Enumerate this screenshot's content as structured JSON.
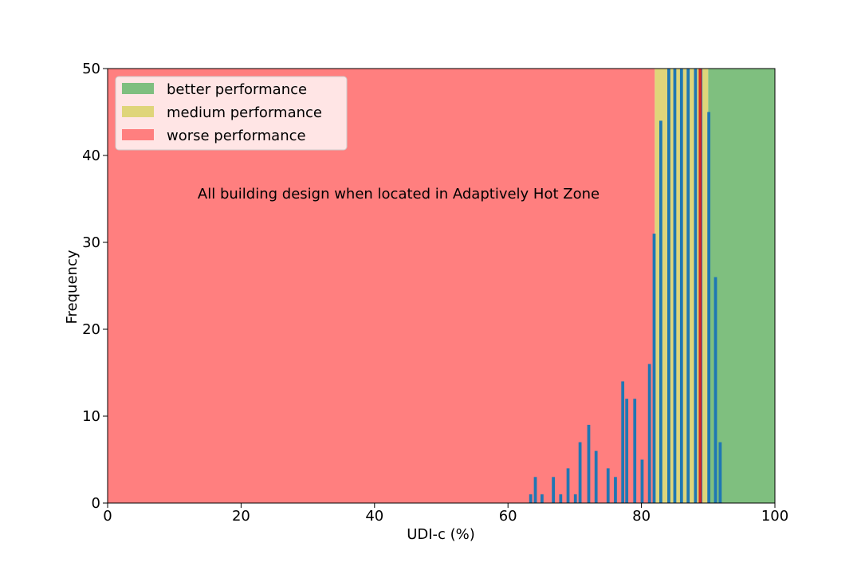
{
  "chart_data": {
    "type": "bar",
    "title": "",
    "annotation": "All building design when located in Adaptively Hot Zone",
    "xlabel": "UDI-c (%)",
    "ylabel": "Frequency",
    "xlim": [
      0,
      100
    ],
    "ylim": [
      0,
      50
    ],
    "xticks": [
      "0",
      "20",
      "40",
      "60",
      "80",
      "100"
    ],
    "yticks": [
      "0",
      "10",
      "20",
      "30",
      "40",
      "50"
    ],
    "grid": false,
    "legend_position": "top-left",
    "regions": [
      {
        "name": "worse performance",
        "x0": 0,
        "x1": 82,
        "color": "#ff7f7f"
      },
      {
        "name": "medium performance",
        "x0": 82,
        "x1": 90,
        "color": "#dfd57a"
      },
      {
        "name": "better performance",
        "x0": 90,
        "x1": 100,
        "color": "#7fbf7f"
      }
    ],
    "legend": [
      {
        "label": "better performance",
        "color": "#7fbf7f"
      },
      {
        "label": "medium performance",
        "color": "#dfd57a"
      },
      {
        "label": "worse performance",
        "color": "#ff7f7f"
      }
    ],
    "bar_color": "#1f77b4",
    "bar_width": 0.45,
    "x": [
      63.4,
      64.1,
      65.1,
      66.8,
      67.9,
      69.0,
      70.1,
      70.8,
      72.1,
      73.2,
      75.0,
      76.1,
      77.2,
      77.8,
      79.0,
      80.1,
      81.2,
      81.9,
      82.9,
      84.1,
      85.0,
      86.0,
      87.0,
      88.1,
      88.9,
      90.1,
      91.1,
      91.8
    ],
    "values": [
      1,
      3,
      1,
      3,
      1,
      4,
      1,
      7,
      9,
      6,
      4,
      3,
      14,
      12,
      12,
      5,
      16,
      31,
      44,
      50,
      50,
      50,
      50,
      50,
      50,
      45,
      26,
      7
    ],
    "highlight_line": {
      "x": 88.8,
      "color": "#d62728"
    }
  }
}
